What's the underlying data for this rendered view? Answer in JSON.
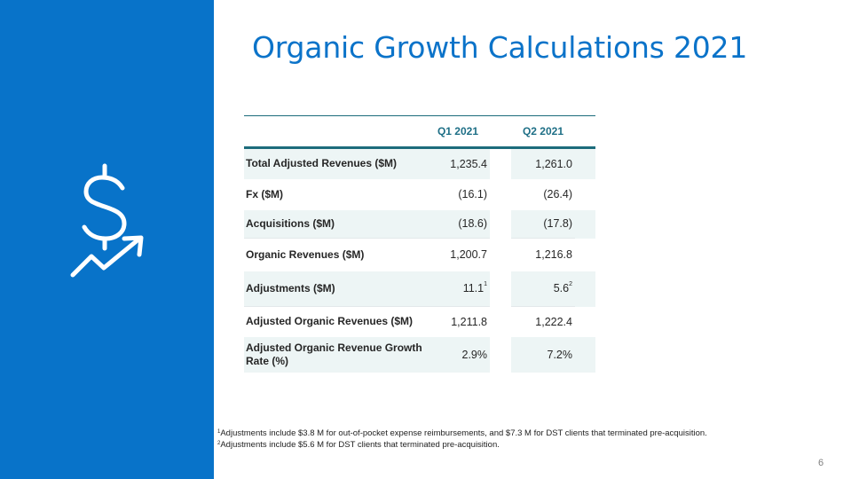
{
  "slide": {
    "title": "Organic Growth Calculations 2021",
    "page_number": "6",
    "icon": "dollar-growth-arrow-icon",
    "side_panel_color": "#0873c9",
    "accent_color": "#0b73c9"
  },
  "table": {
    "headers": {
      "label": "",
      "q1": "Q1 2021",
      "q2": "Q2 2021"
    },
    "rows": [
      {
        "label": "Total Adjusted Revenues ($M)",
        "q1": "1,235.4",
        "q2": "1,261.0"
      },
      {
        "label": "Fx ($M)",
        "q1": "(16.1)",
        "q2": "(26.4)"
      },
      {
        "label": "Acquisitions ($M)",
        "q1": "(18.6)",
        "q2": "(17.8)"
      },
      {
        "label": "Organic Revenues ($M)",
        "q1": "1,200.7",
        "q2": "1,216.8"
      },
      {
        "label": "Adjustments ($M)",
        "q1": "11.1",
        "q1_note": "1",
        "q2": "5.6",
        "q2_note": "2"
      },
      {
        "label": "Adjusted Organic Revenues ($M)",
        "q1": "1,211.8",
        "q2": "1,222.4"
      },
      {
        "label_line1": "Adjusted Organic Revenue Growth",
        "label_line2": "Rate (%)",
        "q1": "2.9%",
        "q2": "7.2%"
      }
    ]
  },
  "footnotes": [
    {
      "marker": "1",
      "text": "Adjustments include $3.8 M for out-of-pocket expense reimbursements, and $7.3 M for DST clients that terminated pre-acquisition."
    },
    {
      "marker": "2",
      "text": "Adjustments include $5.6 M for DST clients that terminated pre-acquisition."
    }
  ]
}
